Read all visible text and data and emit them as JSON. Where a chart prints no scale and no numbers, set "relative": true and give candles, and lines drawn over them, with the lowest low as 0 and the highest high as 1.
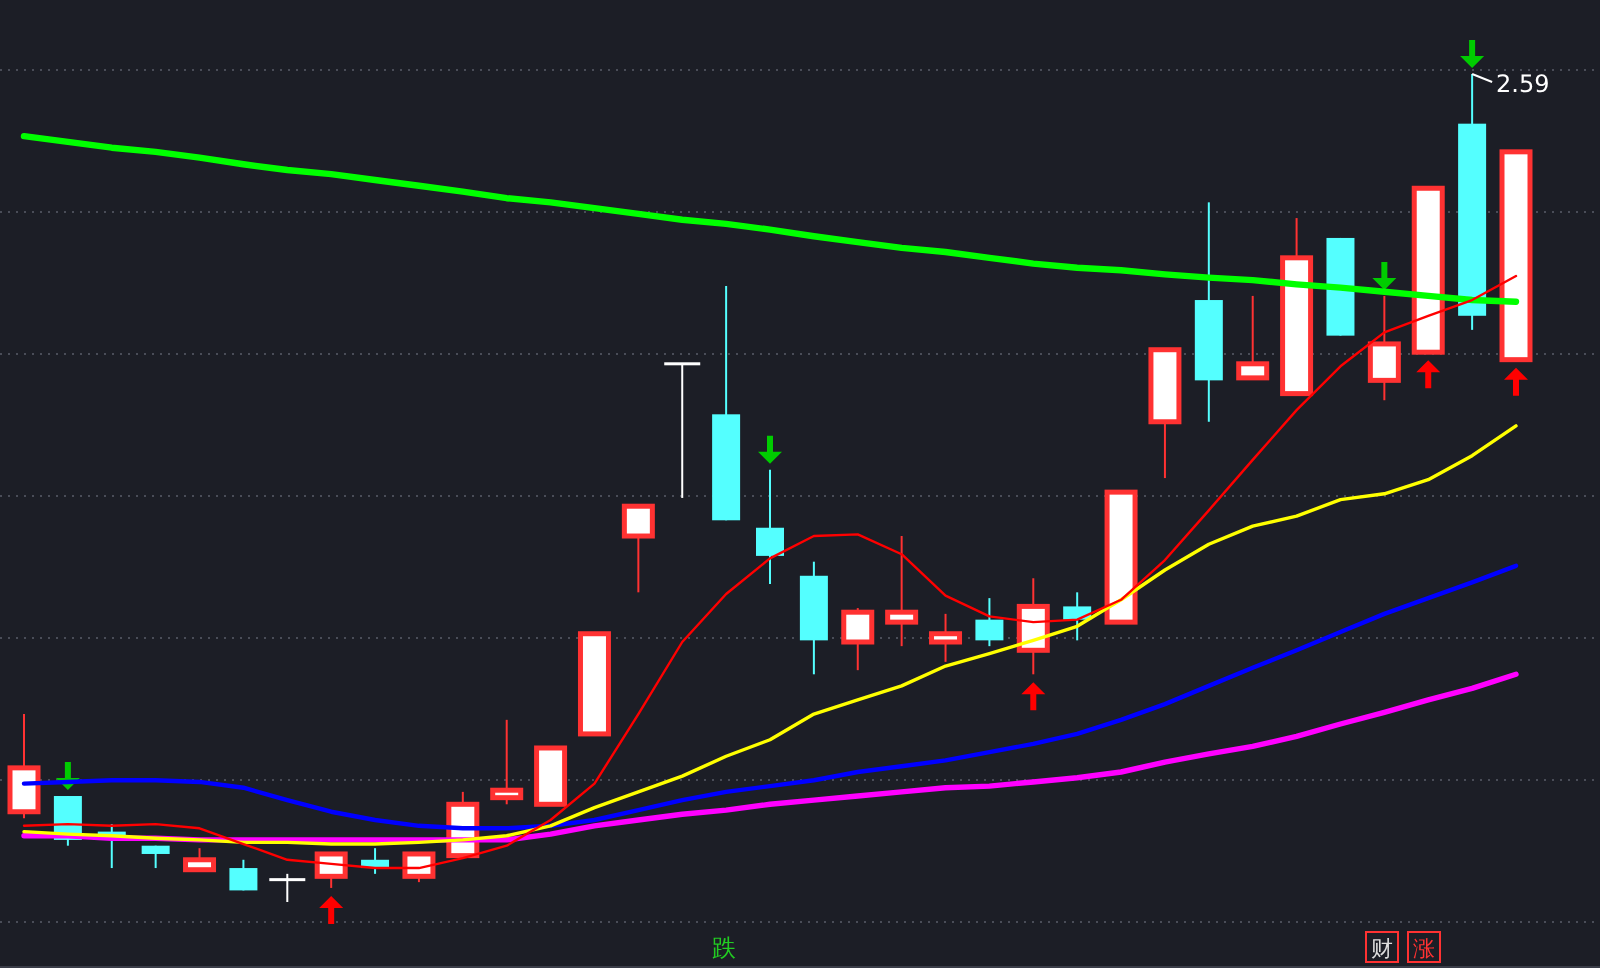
{
  "chart_data": {
    "type": "candlestick",
    "relative": true,
    "grid": "y",
    "categories": [
      null,
      null,
      null,
      null,
      null,
      null,
      null,
      null,
      null,
      null,
      null,
      null,
      null,
      null,
      null,
      null,
      null,
      null,
      null,
      null,
      null,
      null,
      null,
      null,
      null,
      null,
      null,
      null,
      null,
      null,
      null,
      null,
      null,
      null,
      null
    ],
    "ohlc": [
      [
        0.109,
        0.227,
        0.101,
        0.162
      ],
      [
        0.128,
        0.128,
        0.068,
        0.075
      ],
      [
        0.085,
        0.094,
        0.041,
        0.075
      ],
      [
        0.068,
        0.068,
        0.041,
        0.058
      ],
      [
        0.039,
        0.065,
        0.039,
        0.051
      ],
      [
        0.041,
        0.051,
        0.014,
        0.014
      ],
      [
        0.027,
        0.034,
        0,
        0.027
      ],
      [
        0.031,
        0.058,
        0.017,
        0.058
      ],
      [
        0.051,
        0.065,
        0.034,
        0.041
      ],
      [
        0.031,
        0.058,
        0.024,
        0.058
      ],
      [
        0.056,
        0.133,
        0.056,
        0.118
      ],
      [
        0.126,
        0.22,
        0.118,
        0.135
      ],
      [
        0.118,
        0.188,
        0.118,
        0.186
      ],
      [
        0.203,
        0.324,
        0.203,
        0.324
      ],
      [
        0.442,
        0.478,
        0.374,
        0.478
      ],
      [
        0.65,
        0.65,
        0.488,
        0.65
      ],
      [
        0.589,
        0.744,
        0.461,
        0.461
      ],
      [
        0.452,
        0.522,
        0.384,
        0.418
      ],
      [
        0.394,
        0.411,
        0.275,
        0.316
      ],
      [
        0.314,
        0.355,
        0.28,
        0.35
      ],
      [
        0.338,
        0.442,
        0.309,
        0.35
      ],
      [
        0.314,
        0.348,
        0.29,
        0.324
      ],
      [
        0.341,
        0.367,
        0.309,
        0.316
      ],
      [
        0.304,
        0.391,
        0.275,
        0.357
      ],
      [
        0.357,
        0.374,
        0.316,
        0.341
      ],
      [
        0.338,
        0.495,
        0.338,
        0.495
      ],
      [
        0.58,
        0.667,
        0.512,
        0.667
      ],
      [
        0.727,
        0.845,
        0.58,
        0.63
      ],
      [
        0.633,
        0.732,
        0.633,
        0.65
      ],
      [
        0.614,
        0.826,
        0.614,
        0.778
      ],
      [
        0.802,
        0.802,
        0.684,
        0.684
      ],
      [
        0.63,
        0.732,
        0.606,
        0.674
      ],
      [
        0.664,
        0.862,
        0.664,
        0.862
      ],
      [
        0.94,
        1,
        0.691,
        0.708
      ],
      [
        0.655,
        0.906,
        0.655,
        0.906
      ]
    ],
    "colors": [
      "#ff3232",
      "#54ffff",
      "#54ffff",
      "#54ffff",
      "#ff3232",
      "#54ffff",
      "#ffffff",
      "#ff3232",
      "#54ffff",
      "#ff3232",
      "#ff3232",
      "#ff3232",
      "#ff3232",
      "#ff3232",
      "#ff3232",
      "#ffffff",
      "#54ffff",
      "#54ffff",
      "#54ffff",
      "#ff3232",
      "#ff3232",
      "#ff3232",
      "#54ffff",
      "#ff3232",
      "#54ffff",
      "#ff3232",
      "#ff3232",
      "#54ffff",
      "#ff3232",
      "#ff3232",
      "#54ffff",
      "#ff3232",
      "#ff3232",
      "#54ffff",
      "#ff3232"
    ],
    "series": [
      {
        "type": "line",
        "color": "#00ff00",
        "values": [
          0.925,
          0.918,
          0.911,
          0.906,
          0.899,
          0.891,
          0.884,
          0.879,
          0.872,
          0.865,
          0.858,
          0.85,
          0.845,
          0.838,
          0.831,
          0.824,
          0.819,
          0.812,
          0.804,
          0.797,
          0.79,
          0.785,
          0.778,
          0.771,
          0.766,
          0.763,
          0.758,
          0.754,
          0.751,
          0.746,
          0.742,
          0.737,
          0.732,
          0.727,
          0.725
        ]
      },
      {
        "type": "line",
        "color": "#ff00ff",
        "values": [
          0.08,
          0.08,
          0.077,
          0.077,
          0.075,
          0.075,
          0.075,
          0.075,
          0.075,
          0.075,
          0.075,
          0.075,
          0.082,
          0.092,
          0.099,
          0.106,
          0.111,
          0.118,
          0.123,
          0.128,
          0.133,
          0.138,
          0.14,
          0.145,
          0.15,
          0.157,
          0.169,
          0.179,
          0.188,
          0.2,
          0.215,
          0.229,
          0.244,
          0.258,
          0.275
        ]
      },
      {
        "type": "line",
        "color": "#0000ff",
        "values": [
          0.143,
          0.145,
          0.147,
          0.147,
          0.145,
          0.138,
          0.123,
          0.109,
          0.099,
          0.092,
          0.089,
          0.089,
          0.092,
          0.099,
          0.111,
          0.123,
          0.133,
          0.14,
          0.147,
          0.157,
          0.164,
          0.171,
          0.181,
          0.191,
          0.203,
          0.22,
          0.239,
          0.261,
          0.283,
          0.304,
          0.326,
          0.348,
          0.367,
          0.386,
          0.406
        ]
      },
      {
        "type": "line",
        "color": "#ffff00",
        "values": [
          0.085,
          0.082,
          0.08,
          0.077,
          0.075,
          0.072,
          0.072,
          0.07,
          0.07,
          0.072,
          0.075,
          0.08,
          0.092,
          0.114,
          0.133,
          0.152,
          0.176,
          0.196,
          0.227,
          0.244,
          0.261,
          0.285,
          0.3,
          0.316,
          0.333,
          0.365,
          0.401,
          0.432,
          0.454,
          0.466,
          0.486,
          0.493,
          0.51,
          0.539,
          0.575
        ]
      },
      {
        "type": "line",
        "color": "#ff0000",
        "values": [
          0.092,
          0.094,
          0.092,
          0.094,
          0.089,
          0.07,
          0.051,
          0.046,
          0.041,
          0.041,
          0.053,
          0.068,
          0.099,
          0.143,
          0.227,
          0.314,
          0.372,
          0.415,
          0.442,
          0.444,
          0.42,
          0.37,
          0.345,
          0.338,
          0.341,
          0.365,
          0.413,
          0.473,
          0.534,
          0.594,
          0.647,
          0.688,
          0.708,
          0.727,
          0.756
        ]
      }
    ],
    "annotations": [
      "2.59",
      "跌",
      "财",
      "涨"
    ]
  }
}
